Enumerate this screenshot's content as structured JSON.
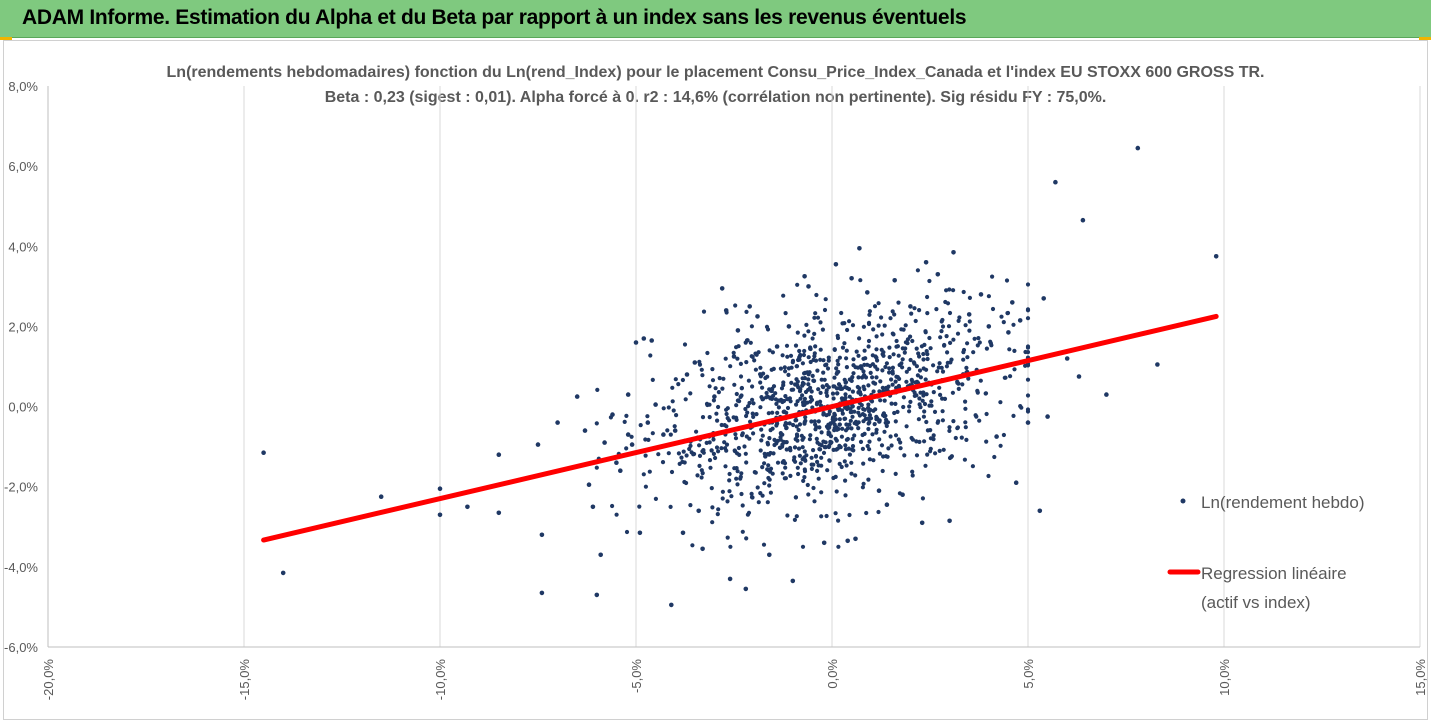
{
  "banner": {
    "title": "ADAM Informe. Estimation du Alpha et du Beta par rapport à un index sans les revenus éventuels"
  },
  "colors": {
    "banner": "#7fc97f",
    "points": "#1f3864",
    "regression": "#ff0000",
    "axis_text": "#595959",
    "grid": "#d9d9d9"
  },
  "chart_data": {
    "type": "scatter",
    "title": "Ln(rendements hebdomadaires) fonction du Ln(rend_Index) pour le placement Consu_Price_Index_Canada et l'index EU STOXX 600 GROSS TR.",
    "subtitle": "Beta : 0,23 (sigest : 0,01).  Alpha forcé à 0. r2 : 14,6% (corrélation non pertinente). Sig résidu FY : 75,0%.",
    "xlabel": "",
    "ylabel": "",
    "xlim": [
      -0.2,
      0.15
    ],
    "ylim": [
      -0.06,
      0.08
    ],
    "x_ticks": [
      "-20,0%",
      "-15,0%",
      "-10,0%",
      "-5,0%",
      "0,0%",
      "5,0%",
      "10,0%",
      "15,0%"
    ],
    "y_ticks": [
      "-6,0%",
      "-4,0%",
      "-2,0%",
      "0,0%",
      "2,0%",
      "4,0%",
      "6,0%",
      "8,0%"
    ],
    "grid": "vertical",
    "legend_position": "right",
    "series": [
      {
        "name": "Ln(rendement hebdo)",
        "kind": "scatter",
        "points": [
          [
            -0.145,
            -0.0115
          ],
          [
            -0.14,
            -0.0415
          ],
          [
            -0.115,
            -0.0225
          ],
          [
            -0.1,
            -0.0205
          ],
          [
            -0.1,
            -0.027
          ],
          [
            -0.093,
            -0.025
          ],
          [
            -0.085,
            -0.012
          ],
          [
            -0.085,
            -0.0265
          ],
          [
            -0.075,
            -0.0095
          ],
          [
            -0.074,
            -0.032
          ],
          [
            -0.074,
            -0.0465
          ],
          [
            -0.07,
            -0.004
          ],
          [
            -0.065,
            0.0025
          ],
          [
            -0.063,
            -0.006
          ],
          [
            -0.062,
            -0.0195
          ],
          [
            -0.061,
            -0.025
          ],
          [
            -0.06,
            -0.047
          ],
          [
            -0.059,
            -0.037
          ],
          [
            -0.058,
            -0.009
          ],
          [
            -0.056,
            -0.002
          ],
          [
            -0.055,
            -0.014
          ],
          [
            -0.054,
            -0.016
          ],
          [
            -0.052,
            0.003
          ],
          [
            -0.052,
            -0.007
          ],
          [
            -0.051,
            -0.0095
          ],
          [
            -0.05,
            0.016
          ],
          [
            -0.049,
            -0.0315
          ],
          [
            -0.048,
            0.017
          ],
          [
            -0.047,
            -0.004
          ],
          [
            -0.046,
            0.0165
          ],
          [
            -0.045,
            0.0005
          ],
          [
            -0.043,
            -0.007
          ],
          [
            -0.041,
            -0.0495
          ],
          [
            -0.04,
            -0.006
          ],
          [
            -0.038,
            -0.0315
          ],
          [
            -0.037,
            0.008
          ],
          [
            -0.035,
            0.011
          ],
          [
            -0.034,
            -0.026
          ],
          [
            -0.033,
            -0.0355
          ],
          [
            -0.03,
            0.0025
          ],
          [
            -0.028,
            0.0295
          ],
          [
            -0.027,
            0.024
          ],
          [
            -0.026,
            -0.043
          ],
          [
            -0.025,
            0.0125
          ],
          [
            -0.024,
            0.019
          ],
          [
            -0.022,
            -0.0455
          ],
          [
            -0.021,
            0.025
          ],
          [
            -0.019,
            0.0225
          ],
          [
            -0.016,
            -0.037
          ],
          [
            -0.014,
            0.015
          ],
          [
            -0.011,
            0.02
          ],
          [
            -0.01,
            -0.0435
          ],
          [
            -0.007,
            0.0325
          ],
          [
            -0.006,
            0.03
          ],
          [
            -0.002,
            -0.034
          ],
          [
            0.001,
            0.0355
          ],
          [
            0.004,
            -0.0335
          ],
          [
            0.005,
            0.032
          ],
          [
            0.006,
            -0.033
          ],
          [
            0.007,
            0.0395
          ],
          [
            0.009,
            0.0285
          ],
          [
            0.012,
            -0.021
          ],
          [
            0.014,
            -0.0245
          ],
          [
            0.016,
            0.0315
          ],
          [
            0.018,
            -0.022
          ],
          [
            0.02,
            0.025
          ],
          [
            0.023,
            -0.029
          ],
          [
            0.024,
            0.036
          ],
          [
            0.027,
            0.033
          ],
          [
            0.03,
            -0.0285
          ],
          [
            0.031,
            0.0385
          ],
          [
            0.035,
            0.023
          ],
          [
            0.038,
            0.028
          ],
          [
            0.04,
            0.02
          ],
          [
            0.042,
            -0.0075
          ],
          [
            0.045,
            0.0185
          ],
          [
            0.046,
            0.026
          ],
          [
            0.047,
            -0.019
          ],
          [
            0.048,
            0.0215
          ],
          [
            0.05,
            -0.004
          ],
          [
            0.053,
            -0.026
          ],
          [
            0.054,
            0.027
          ],
          [
            0.055,
            -0.0025
          ],
          [
            0.057,
            0.056
          ],
          [
            0.06,
            0.012
          ],
          [
            0.063,
            0.0075
          ],
          [
            0.064,
            0.0465
          ],
          [
            0.07,
            0.003
          ],
          [
            0.078,
            0.0645
          ],
          [
            0.083,
            0.0105
          ],
          [
            0.098,
            0.0375
          ]
        ]
      },
      {
        "name": "Regression linéaire (actif vs index)",
        "kind": "line",
        "x": [
          -0.145,
          0.098
        ],
        "y": [
          -0.0333,
          0.0225
        ]
      }
    ],
    "legend": {
      "scatter_label": "Ln(rendement hebdo)",
      "line_label_1": "Regression linéaire",
      "line_label_2": "(actif vs index)"
    },
    "cloud": {
      "count": 1200,
      "center": [
        0.0,
        0.0
      ],
      "sd_x": 0.022,
      "sd_y": 0.0115,
      "beta": 0.23
    }
  }
}
